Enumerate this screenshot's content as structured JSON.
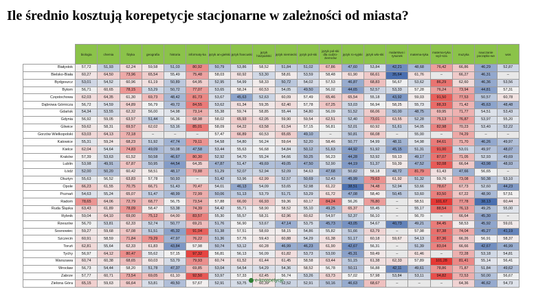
{
  "title": "Ile średnio kosztują korepetycje stacjonarne w zależności od miasta?",
  "logo_text": "e-korepetycje",
  "colors": {
    "header": "#8bc34a",
    "low": "#4a6fb0",
    "mid": "#f2f2f2",
    "high": "#e53935",
    "missing": "#e8e8e8"
  },
  "chart_data": {
    "type": "heatmap",
    "columns": [
      "biologia",
      "chemia",
      "fizyka",
      "geografia",
      "historia",
      "informaty-ka",
      "język an-gielski",
      "język francuski",
      "język hiszpański",
      "język niemiecki",
      "język pol-ski",
      "język pol-ski dla cudzo-ziemców",
      "język ro-syjski",
      "język wło-ski",
      "malarstwo i rysunek",
      "matema-tyka",
      "matema-tyka wyż-sza",
      "muzyka",
      "nauczanie początko-we",
      "wos"
    ],
    "rows": [
      {
        "city": "Białystok",
        "values": [
          "57,72",
          "51,93",
          "62,24",
          "59,58",
          "51,03",
          "80,92",
          "50,79",
          "53,86",
          "58,52",
          "51,84",
          "51,02",
          "67,86",
          "47,60",
          "53,84",
          "42,21",
          "48,68",
          "76,42",
          "66,86",
          "46,29",
          "52,87"
        ]
      },
      {
        "city": "Bielsko-Biała",
        "values": [
          "60,27",
          "64,50",
          "73,96",
          "65,54",
          "55,49",
          "75,48",
          "58,03",
          "60,92",
          "53,30",
          "58,81",
          "53,59",
          "58,48",
          "61,90",
          "66,61",
          "35,64",
          "61,76",
          "–",
          "66,27",
          "46,31",
          "–"
        ]
      },
      {
        "city": "Bydgoszcz",
        "values": [
          "53,01",
          "54,52",
          "60,96",
          "61,19",
          "50,89",
          "64,95",
          "52,95",
          "54,99",
          "58,33",
          "50,72",
          "54,02",
          "57,53",
          "46,87",
          "68,83",
          "56,67",
          "53,62",
          "86,29",
          "62,60",
          "46,36",
          "53,56"
        ]
      },
      {
        "city": "Bytom",
        "values": [
          "56,71",
          "60,65",
          "78,15",
          "53,29",
          "50,72",
          "77,07",
          "53,65",
          "58,24",
          "60,53",
          "54,05",
          "49,50",
          "56,02",
          "44,65",
          "52,57",
          "53,33",
          "57,28",
          "76,24",
          "73,94",
          "44,81",
          "57,31"
        ]
      },
      {
        "city": "Częstochowa",
        "values": [
          "62,03",
          "64,35",
          "61,30",
          "69,73",
          "48,42",
          "81,73",
          "53,67",
          "45,63",
          "52,63",
          "60,09",
          "57,49",
          "65,46",
          "65,54",
          "55,18",
          "43,92",
          "59,03",
          "91,50",
          "77,53",
          "50,57",
          "60,78"
        ]
      },
      {
        "city": "Dąbrowa Górnicza",
        "values": [
          "56,72",
          "54,59",
          "64,89",
          "56,79",
          "49,72",
          "84,55",
          "53,62",
          "61,34",
          "59,35",
          "62,40",
          "57,78",
          "67,25",
          "53,03",
          "56,94",
          "58,25",
          "55,73",
          "88,33",
          "71,42",
          "45,63",
          "48,48"
        ]
      },
      {
        "city": "Gdańsk",
        "values": [
          "54,34",
          "53,55",
          "62,32",
          "56,00",
          "54,98",
          "73,14",
          "55,38",
          "59,74",
          "58,85",
          "55,44",
          "54,80",
          "56,09",
          "51,52",
          "66,06",
          "50,00",
          "48,75",
          "69,95",
          "71,77",
          "54,51",
          "53,43"
        ]
      },
      {
        "city": "Gdynia",
        "values": [
          "56,92",
          "59,05",
          "63,57",
          "51,44",
          "56,36",
          "68,98",
          "58,02",
          "65,93",
          "62,05",
          "59,90",
          "59,54",
          "62,51",
          "52,40",
          "73,01",
          "63,55",
          "52,28",
          "75,13",
          "76,87",
          "53,97",
          "55,20"
        ]
      },
      {
        "city": "Gliwice",
        "values": [
          "59,62",
          "58,31",
          "69,57",
          "62,02",
          "53,16",
          "85,01",
          "58,09",
          "64,22",
          "63,58",
          "61,54",
          "57,15",
          "56,81",
          "52,01",
          "60,92",
          "51,61",
          "54,05",
          "82,98",
          "70,23",
          "53,40",
          "52,22"
        ]
      },
      {
        "city": "Gorzów Wielkopolski",
        "values": [
          "63,03",
          "64,13",
          "72,18",
          "–",
          "–",
          "–",
          "57,47",
          "66,89",
          "60,53",
          "65,65",
          "49,10",
          "–",
          "50,81",
          "66,08",
          "–",
          "55,00",
          "–",
          "74,29",
          "–",
          "–"
        ]
      },
      {
        "city": "Katowice",
        "values": [
          "55,31",
          "59,24",
          "68,23",
          "51,92",
          "47,74",
          "79,11",
          "54,58",
          "54,80",
          "56,24",
          "59,64",
          "52,20",
          "58,46",
          "50,77",
          "54,99",
          "48,11",
          "54,98",
          "84,61",
          "71,70",
          "46,26",
          "49,97"
        ]
      },
      {
        "city": "Kielce",
        "values": [
          "62,04",
          "54,64",
          "74,83",
          "49,09",
          "50,08",
          "47,58",
          "53,44",
          "55,63",
          "56,68",
          "54,84",
          "50,12",
          "51,63",
          "44,92",
          "51,92",
          "45,15",
          "51,31",
          "91,00",
          "53,01",
          "49,97",
          "48,07"
        ]
      },
      {
        "city": "Kraków",
        "values": [
          "57,39",
          "53,63",
          "61,52",
          "50,58",
          "46,67",
          "80,30",
          "52,92",
          "54,70",
          "55,24",
          "54,66",
          "50,25",
          "56,23",
          "44,28",
          "53,92",
          "59,13",
          "49,17",
          "87,07",
          "71,05",
          "52,93",
          "49,69"
        ]
      },
      {
        "city": "Lublin",
        "values": [
          "53,98",
          "49,91",
          "67,87",
          "50,95",
          "44,54",
          "64,35",
          "47,87",
          "51,47",
          "49,69",
          "49,05",
          "47,50",
          "52,90",
          "44,19",
          "51,37",
          "59,39",
          "47,52",
          "92,08",
          "66,64",
          "43,98",
          "48,93"
        ]
      },
      {
        "city": "Łódź",
        "values": [
          "52,00",
          "50,20",
          "60,42",
          "58,51",
          "48,17",
          "73,88",
          "51,29",
          "52,07",
          "52,94",
          "52,09",
          "54,63",
          "47,68",
          "50,82",
          "58,18",
          "48,72",
          "81,79",
          "61,43",
          "47,66",
          "56,65",
          "–"
        ]
      },
      {
        "city": "Olsztyn",
        "values": [
          "55,63",
          "56,52",
          "63,83",
          "57,78",
          "50,93",
          "–",
          "51,42",
          "53,96",
          "62,99",
          "52,57",
          "50,69",
          "52,43",
          "45,99",
          "79,63",
          "61,92",
          "51,32",
          "59,76",
          "73,08",
          "50,38",
          "53,10"
        ]
      },
      {
        "city": "Opole",
        "values": [
          "66,23",
          "61,55",
          "70,75",
          "66,71",
          "51,43",
          "70,47",
          "54,01",
          "46,13",
          "54,09",
          "53,65",
          "52,98",
          "61,22",
          "38,51",
          "74,48",
          "52,94",
          "53,66",
          "78,67",
          "67,73",
          "52,60",
          "44,23"
        ]
      },
      {
        "city": "Poznań",
        "values": [
          "54,63",
          "55,24",
          "65,07",
          "51,47",
          "48,99",
          "72,99",
          "50,06",
          "51,13",
          "53,79",
          "51,71",
          "53,29",
          "61,72",
          "47,08",
          "58,40",
          "50,45",
          "53,60",
          "83,50",
          "67,22",
          "48,90",
          "57,51"
        ]
      },
      {
        "city": "Radom",
        "values": [
          "78,65",
          "64,06",
          "72,79",
          "68,77",
          "56,75",
          "73,54",
          "57,88",
          "66,00",
          "66,93",
          "59,36",
          "60,17",
          "84,24",
          "56,26",
          "76,80",
          "–",
          "58,51",
          "101,67",
          "77,78",
          "38,13",
          "60,44"
        ]
      },
      {
        "city": "Ruda Śląska",
        "values": [
          "63,43",
          "61,89",
          "78,09",
          "58,47",
          "53,38",
          "74,39",
          "54,42",
          "55,71",
          "58,90",
          "58,52",
          "55,10",
          "49,25",
          "65,37",
          "55,45",
          "–",
          "55,17",
          "88,54",
          "76,13",
          "49,25",
          "55,00"
        ]
      },
      {
        "city": "Rybnik",
        "values": [
          "59,04",
          "64,10",
          "69,00",
          "75,12",
          "64,00",
          "83,57",
          "55,30",
          "55,57",
          "58,31",
          "62,96",
          "60,62",
          "54,97",
          "52,37",
          "56,10",
          "–",
          "56,70",
          "–",
          "66,64",
          "45,30",
          "–"
        ]
      },
      {
        "city": "Rzeszów",
        "values": [
          "56,70",
          "53,81",
          "62,33",
          "52,74",
          "50,77",
          "69,21",
          "51,76",
          "56,90",
          "53,67",
          "47,14",
          "53,75",
          "45,73",
          "43,05",
          "54,67",
          "40,73",
          "49,21",
          "84,45",
          "58,53",
          "45,92",
          "59,01"
        ]
      },
      {
        "city": "Sosnowiec",
        "values": [
          "59,27",
          "59,68",
          "67,08",
          "51,51",
          "45,32",
          "91,04",
          "51,38",
          "57,51",
          "58,69",
          "58,15",
          "54,86",
          "55,82",
          "51,66",
          "63,79",
          "–",
          "57,98",
          "87,38",
          "74,04",
          "45,27",
          "41,19"
        ]
      },
      {
        "city": "Szczecin",
        "values": [
          "60,91",
          "58,59",
          "71,84",
          "79,29",
          "47,97",
          "76,22",
          "51,36",
          "57,76",
          "59,43",
          "60,88",
          "54,29",
          "61,38",
          "51,17",
          "60,18",
          "59,67",
          "54,13",
          "87,36",
          "66,26",
          "56,91",
          "58,37"
        ]
      },
      {
        "city": "Toruń",
        "values": [
          "62,81",
          "55,64",
          "62,33",
          "61,83",
          "43,84",
          "57,98",
          "50,74",
          "53,12",
          "60,28",
          "46,99",
          "46,23",
          "61,90",
          "42,67",
          "56,31",
          "–",
          "51,39",
          "83,04",
          "66,66",
          "42,67",
          "46,99"
        ]
      },
      {
        "city": "Tychy",
        "values": [
          "56,97",
          "64,12",
          "80,47",
          "55,62",
          "57,15",
          "97,32",
          "56,81",
          "56,13",
          "56,09",
          "61,82",
          "53,73",
          "53,00",
          "45,31",
          "59,49",
          "–",
          "61,46",
          "–",
          "72,28",
          "53,18",
          "54,81"
        ]
      },
      {
        "city": "Warszawa",
        "values": [
          "60,74",
          "60,38",
          "68,65",
          "60,03",
          "53,79",
          "79,93",
          "60,74",
          "61,52",
          "61,44",
          "61,45",
          "58,58",
          "63,44",
          "51,15",
          "61,38",
          "62,33",
          "57,89",
          "101,28",
          "81,41",
          "55,14",
          "56,41"
        ]
      },
      {
        "city": "Wrocław",
        "values": [
          "56,73",
          "54,44",
          "58,20",
          "51,78",
          "47,37",
          "69,85",
          "53,04",
          "54,54",
          "54,29",
          "54,36",
          "58,52",
          "56,78",
          "50,11",
          "56,88",
          "42,11",
          "49,61",
          "78,86",
          "71,87",
          "51,84",
          "49,62"
        ]
      },
      {
        "city": "Zabrze",
        "values": [
          "57,77",
          "60,71",
          "73,54",
          "69,05",
          "61,10",
          "92,50",
          "53,97",
          "57,33",
          "62,45",
          "56,74",
          "53,26",
          "63,73",
          "57,02",
          "57,98",
          "53,84",
          "53,11",
          "94,82",
          "72,53",
          "50,00",
          "56,67"
        ]
      },
      {
        "city": "Zielona Góra",
        "values": [
          "65,15",
          "59,63",
          "66,64",
          "53,81",
          "49,50",
          "57,67",
          "52,91",
          "53,75",
          "60,39",
          "52,52",
          "52,91",
          "50,16",
          "46,63",
          "68,67",
          "–",
          "–",
          "–",
          "64,36",
          "46,62",
          "54,73"
        ]
      }
    ]
  }
}
